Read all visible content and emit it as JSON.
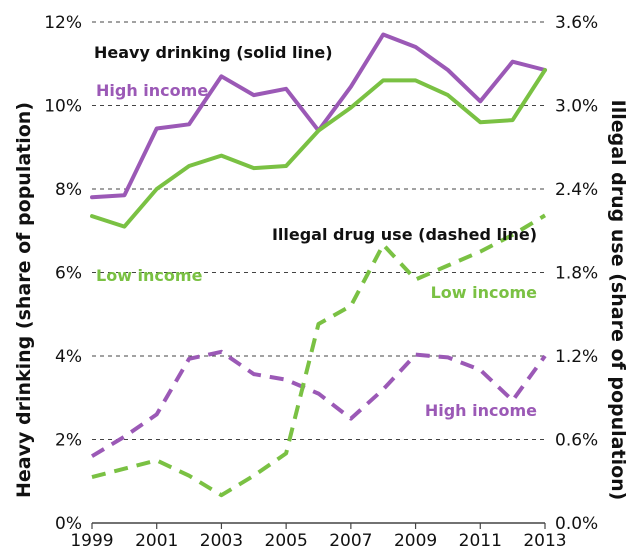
{
  "colors": {
    "high_income": "#9b59b6",
    "low_income": "#7ac143",
    "grid": "#444444",
    "text": "#111111"
  },
  "chart_data": {
    "type": "line",
    "x": [
      1999,
      2000,
      2001,
      2002,
      2003,
      2004,
      2005,
      2006,
      2007,
      2008,
      2009,
      2010,
      2011,
      2012,
      2013
    ],
    "x_ticks": [
      1999,
      2001,
      2003,
      2005,
      2007,
      2009,
      2011,
      2013
    ],
    "xlim": [
      1999,
      2013
    ],
    "ylabel_left": "Heavy drinking (share of population)",
    "ylabel_right": "Illegal drug use (share of population)",
    "ylim_left": [
      0,
      12
    ],
    "ylim_right": [
      0,
      3.6
    ],
    "yticks_left": [
      "0%",
      "2%",
      "4%",
      "6%",
      "8%",
      "10%",
      "12%"
    ],
    "yticks_right": [
      "0.0%",
      "0.6%",
      "1.2%",
      "1.8%",
      "2.4%",
      "3.0%",
      "3.6%"
    ],
    "grid": "horizontal dashed",
    "series": [
      {
        "name": "High income",
        "measure": "Heavy drinking",
        "axis": "left",
        "style": "solid",
        "color": "#9b59b6",
        "values": [
          7.8,
          7.85,
          9.45,
          9.55,
          10.7,
          10.25,
          10.4,
          9.4,
          10.45,
          11.7,
          11.4,
          10.85,
          10.1,
          11.05,
          10.85
        ]
      },
      {
        "name": "Low income",
        "measure": "Heavy drinking",
        "axis": "left",
        "style": "solid",
        "color": "#7ac143",
        "values": [
          7.35,
          7.1,
          8.0,
          8.55,
          8.8,
          8.5,
          8.55,
          9.4,
          9.95,
          10.6,
          10.6,
          10.25,
          9.6,
          9.65,
          10.85
        ]
      },
      {
        "name": "High income",
        "measure": "Illegal drug use",
        "axis": "right",
        "style": "dashed",
        "color": "#9b59b6",
        "values": [
          0.48,
          0.62,
          0.78,
          1.18,
          1.23,
          1.07,
          1.03,
          0.93,
          0.75,
          0.96,
          1.21,
          1.19,
          1.1,
          0.88,
          1.2
        ]
      },
      {
        "name": "Low income",
        "measure": "Illegal drug use",
        "axis": "right",
        "style": "dashed",
        "color": "#7ac143",
        "values": [
          0.33,
          0.39,
          0.45,
          0.34,
          0.2,
          0.34,
          0.5,
          1.43,
          1.56,
          2.0,
          1.75,
          1.85,
          1.95,
          2.07,
          2.21
        ]
      }
    ],
    "annotations": {
      "heavy_title": "Heavy drinking (solid line)",
      "drug_title": "Illegal drug use (dashed line)",
      "solid_high": "High income",
      "solid_low": "Low income",
      "dashed_low": "Low income",
      "dashed_high": "High income"
    }
  }
}
